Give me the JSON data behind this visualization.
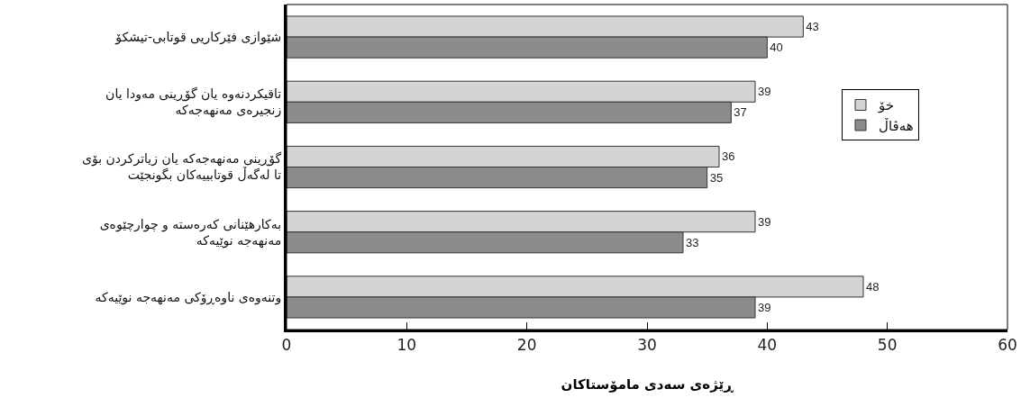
{
  "chart_data": {
    "type": "bar",
    "orientation": "horizontal",
    "xlabel": "ڕێژەی سەدی مامۆستاکان",
    "categories": [
      "شێوازی فێرکاریی قوتابی-تیشکۆ",
      "تاقیکردنەوە یان گۆڕینی مەودا یان\nزنجیرەی مەنهەجەکە",
      "گۆڕینی مەنهەجەکە یان زیاترکردن بۆی\nتا لەگەڵ قوتابییەکان بگونجێت",
      "بەکارهێنانی کەرەستە و چوارچێوەی\nمەنهەجە نوێیەکە",
      "وتنەوەی ناوەڕۆکی مەنهەجە نوێیەکە"
    ],
    "series": [
      {
        "name": "خۆ",
        "color": "#d4d4d4",
        "values": [
          43,
          39,
          36,
          39,
          48
        ]
      },
      {
        "name": "هەڤاڵ",
        "color": "#8c8c8e",
        "values": [
          40,
          37,
          35,
          33,
          39
        ]
      }
    ],
    "xlim": [
      0,
      60
    ],
    "xticks": [
      0,
      10,
      20,
      30,
      40,
      50,
      60
    ],
    "data_labels": true,
    "grid": false,
    "legend": "right"
  }
}
